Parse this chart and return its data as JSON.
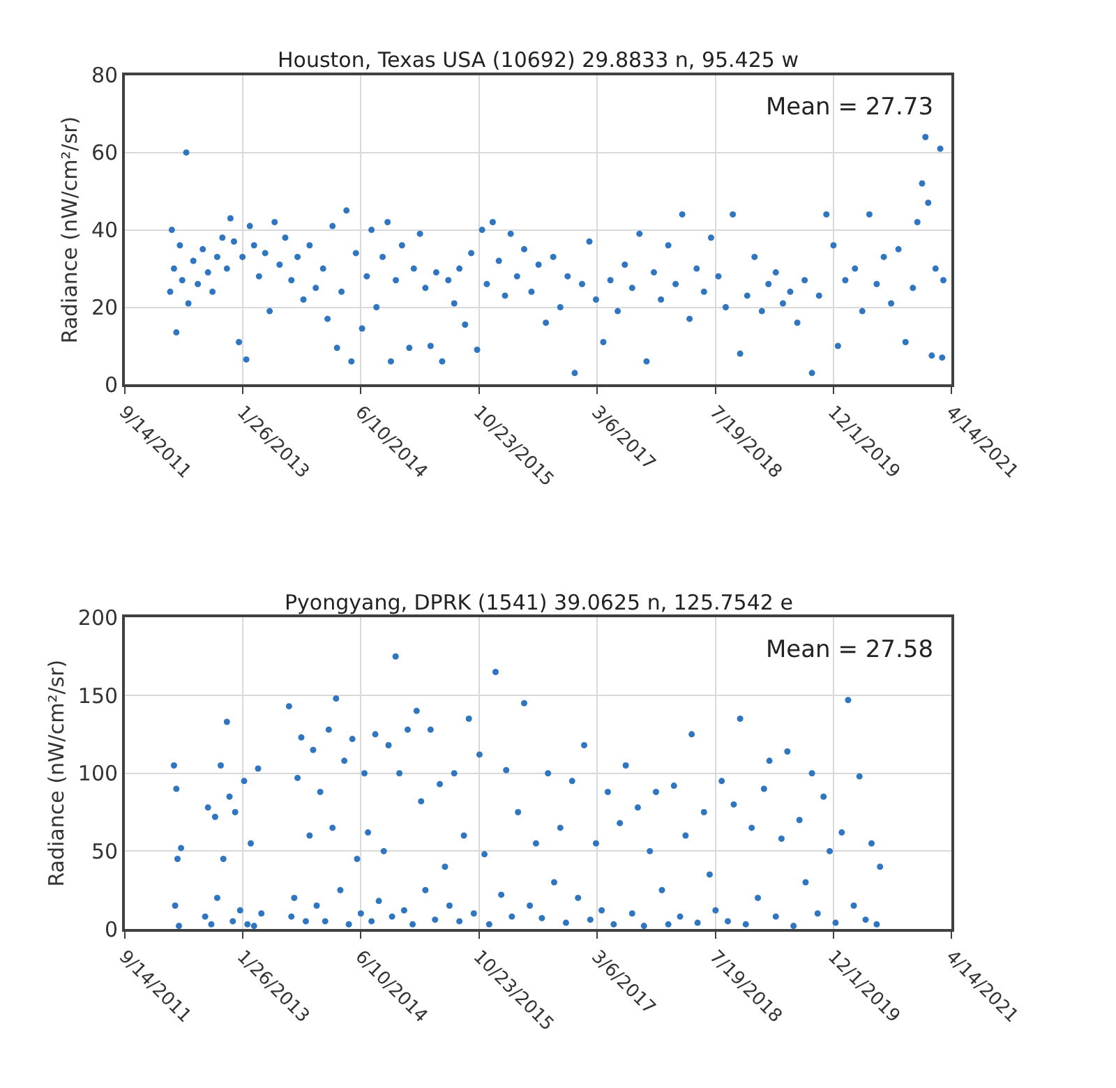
{
  "chart_data": [
    {
      "type": "scatter",
      "title": "Houston, Texas USA (10692) 29.8833 n, 95.425 w",
      "ylabel": "Radiance (nW/cm²/sr)",
      "color": "#2f75c0",
      "marker": "circle",
      "grid": true,
      "annotations": [
        "Mean = 27.73"
      ],
      "xlim": [
        "2011-09-14",
        "2021-04-14"
      ],
      "xticks": [
        {
          "value": "2011-09-14",
          "label": "9/14/2011"
        },
        {
          "value": "2013-01-26",
          "label": "1/26/2013"
        },
        {
          "value": "2014-06-10",
          "label": "6/10/2014"
        },
        {
          "value": "2015-10-23",
          "label": "10/23/2015"
        },
        {
          "value": "2017-03-06",
          "label": "3/6/2017"
        },
        {
          "value": "2018-07-19",
          "label": "7/19/2018"
        },
        {
          "value": "2019-12-01",
          "label": "12/1/2019"
        },
        {
          "value": "2021-04-14",
          "label": "4/14/2021"
        }
      ],
      "ylim": [
        0,
        80
      ],
      "yticks": [
        0,
        20,
        40,
        60,
        80
      ],
      "x": [
        "2012-03-25",
        "2012-04-01",
        "2012-04-10",
        "2012-04-20",
        "2012-05-05",
        "2012-05-15",
        "2012-06-01",
        "2012-06-10",
        "2012-07-01",
        "2012-07-20",
        "2012-08-10",
        "2012-09-01",
        "2012-09-20",
        "2012-10-10",
        "2012-11-01",
        "2012-11-20",
        "2012-12-05",
        "2012-12-20",
        "2013-01-10",
        "2013-01-25",
        "2013-02-10",
        "2013-02-25",
        "2013-03-15",
        "2013-04-05",
        "2013-05-01",
        "2013-05-20",
        "2013-06-10",
        "2013-07-01",
        "2013-07-25",
        "2013-08-20",
        "2013-09-15",
        "2013-10-10",
        "2013-11-05",
        "2013-12-01",
        "2014-01-01",
        "2014-01-20",
        "2014-02-10",
        "2014-03-01",
        "2014-03-20",
        "2014-04-10",
        "2014-05-01",
        "2014-05-20",
        "2014-06-15",
        "2014-07-05",
        "2014-07-25",
        "2014-08-15",
        "2014-09-10",
        "2014-10-01",
        "2014-10-15",
        "2014-11-05",
        "2014-12-01",
        "2015-01-01",
        "2015-01-20",
        "2015-02-15",
        "2015-03-10",
        "2015-04-01",
        "2015-04-25",
        "2015-05-20",
        "2015-06-15",
        "2015-07-10",
        "2015-08-01",
        "2015-08-25",
        "2015-09-20",
        "2015-10-15",
        "2015-11-05",
        "2015-11-25",
        "2015-12-20",
        "2016-01-15",
        "2016-02-10",
        "2016-03-05",
        "2016-04-01",
        "2016-05-01",
        "2016-06-01",
        "2016-07-01",
        "2016-08-01",
        "2016-09-01",
        "2016-10-01",
        "2016-11-01",
        "2016-12-01",
        "2017-01-01",
        "2017-02-01",
        "2017-03-01",
        "2017-04-01",
        "2017-05-01",
        "2017-06-01",
        "2017-07-01",
        "2017-08-01",
        "2017-09-01",
        "2017-10-01",
        "2017-11-01",
        "2017-12-01",
        "2018-01-01",
        "2018-02-01",
        "2018-03-01",
        "2018-04-01",
        "2018-05-01",
        "2018-06-01",
        "2018-07-01",
        "2018-08-01",
        "2018-09-01",
        "2018-10-01",
        "2018-11-01",
        "2018-12-01",
        "2019-01-01",
        "2019-02-01",
        "2019-03-01",
        "2019-04-01",
        "2019-05-01",
        "2019-06-01",
        "2019-07-01",
        "2019-08-01",
        "2019-09-01",
        "2019-10-01",
        "2019-11-01",
        "2019-12-01",
        "2019-12-20",
        "2020-01-20",
        "2020-03-01",
        "2020-04-01",
        "2020-05-01",
        "2020-06-01",
        "2020-07-01",
        "2020-08-01",
        "2020-09-01",
        "2020-10-01",
        "2020-11-01",
        "2020-11-20",
        "2020-12-10",
        "2020-12-24",
        "2021-01-05",
        "2021-01-20",
        "2021-02-05",
        "2021-02-25",
        "2021-03-05",
        "2021-03-10"
      ],
      "values": [
        24,
        40,
        30,
        13.5,
        36,
        27,
        60,
        21,
        32,
        26,
        35,
        29,
        24,
        33,
        38,
        30,
        43,
        37,
        11,
        33,
        6.5,
        41,
        36,
        28,
        34,
        19,
        42,
        31,
        38,
        27,
        33,
        22,
        36,
        25,
        30,
        17,
        41,
        9.5,
        24,
        45,
        6,
        34,
        14.5,
        28,
        40,
        20,
        33,
        42,
        6,
        27,
        36,
        9.5,
        30,
        39,
        25,
        10,
        29,
        6,
        27,
        21,
        30,
        15.5,
        34,
        9,
        40,
        26,
        42,
        32,
        23,
        39,
        28,
        35,
        24,
        31,
        16,
        33,
        20,
        28,
        3,
        26,
        37,
        22,
        11,
        27,
        19,
        31,
        25,
        39,
        6,
        29,
        22,
        36,
        26,
        44,
        17,
        30,
        24,
        38,
        28,
        20,
        44,
        8,
        23,
        33,
        19,
        26,
        29,
        21,
        24,
        16,
        27,
        3,
        23,
        44,
        36,
        10,
        27,
        30,
        19,
        44,
        26,
        33,
        21,
        35,
        11,
        25,
        42,
        52,
        64,
        47,
        7.5,
        30,
        61,
        7,
        27
      ]
    },
    {
      "type": "scatter",
      "title": "Pyongyang, DPRK (1541) 39.0625 n, 125.7542 e",
      "ylabel": "Radiance (nW/cm²/sr)",
      "color": "#2f75c0",
      "marker": "circle",
      "grid": true,
      "annotations": [
        "Mean = 27.58"
      ],
      "xlim": [
        "2011-09-14",
        "2021-04-14"
      ],
      "xticks": [
        {
          "value": "2011-09-14",
          "label": "9/14/2011"
        },
        {
          "value": "2013-01-26",
          "label": "1/26/2013"
        },
        {
          "value": "2014-06-10",
          "label": "6/10/2014"
        },
        {
          "value": "2015-10-23",
          "label": "10/23/2015"
        },
        {
          "value": "2017-03-06",
          "label": "3/6/2017"
        },
        {
          "value": "2018-07-19",
          "label": "7/19/2018"
        },
        {
          "value": "2019-12-01",
          "label": "12/1/2019"
        },
        {
          "value": "2021-04-14",
          "label": "4/14/2021"
        }
      ],
      "ylim": [
        0,
        200
      ],
      "yticks": [
        0,
        50,
        100,
        150,
        200
      ],
      "x": [
        "2012-04-10",
        "2012-04-15",
        "2012-04-20",
        "2012-04-25",
        "2012-05-01",
        "2012-05-10",
        "2012-08-20",
        "2012-09-01",
        "2012-09-15",
        "2012-10-01",
        "2012-10-10",
        "2012-10-25",
        "2012-11-05",
        "2012-11-20",
        "2012-12-01",
        "2012-12-15",
        "2012-12-25",
        "2013-01-15",
        "2013-02-01",
        "2013-02-15",
        "2013-03-01",
        "2013-03-15",
        "2013-04-01",
        "2013-04-15",
        "2013-08-10",
        "2013-08-20",
        "2013-09-01",
        "2013-09-15",
        "2013-10-01",
        "2013-10-20",
        "2013-11-05",
        "2013-11-20",
        "2013-12-05",
        "2013-12-20",
        "2014-01-10",
        "2014-01-25",
        "2014-02-10",
        "2014-02-25",
        "2014-03-15",
        "2014-04-01",
        "2014-04-20",
        "2014-05-05",
        "2014-05-25",
        "2014-06-10",
        "2014-06-25",
        "2014-07-10",
        "2014-07-25",
        "2014-08-10",
        "2014-08-25",
        "2014-09-15",
        "2014-10-05",
        "2014-10-20",
        "2014-11-04",
        "2014-11-20",
        "2014-12-10",
        "2014-12-25",
        "2015-01-15",
        "2015-02-01",
        "2015-02-20",
        "2015-03-10",
        "2015-04-01",
        "2015-04-20",
        "2015-05-10",
        "2015-06-01",
        "2015-06-20",
        "2015-07-10",
        "2015-08-01",
        "2015-08-20",
        "2015-09-10",
        "2015-10-01",
        "2015-10-25",
        "2015-11-15",
        "2015-12-05",
        "2016-01-01",
        "2016-01-25",
        "2016-02-15",
        "2016-03-10",
        "2016-04-05",
        "2016-05-01",
        "2016-05-25",
        "2016-06-20",
        "2016-07-15",
        "2016-08-10",
        "2016-09-05",
        "2016-10-01",
        "2016-10-25",
        "2016-11-20",
        "2016-12-15",
        "2017-01-10",
        "2017-02-05",
        "2017-03-01",
        "2017-03-25",
        "2017-04-20",
        "2017-05-15",
        "2017-06-10",
        "2017-07-05",
        "2017-08-01",
        "2017-08-25",
        "2017-09-20",
        "2017-10-15",
        "2017-11-10",
        "2017-12-05",
        "2018-01-01",
        "2018-01-25",
        "2018-02-20",
        "2018-03-15",
        "2018-04-10",
        "2018-05-05",
        "2018-06-01",
        "2018-06-25",
        "2018-07-20",
        "2018-08-15",
        "2018-09-10",
        "2018-10-05",
        "2018-11-01",
        "2018-11-25",
        "2018-12-20",
        "2019-01-15",
        "2019-02-10",
        "2019-03-05",
        "2019-04-01",
        "2019-04-25",
        "2019-05-20",
        "2019-06-15",
        "2019-07-10",
        "2019-08-05",
        "2019-09-01",
        "2019-09-25",
        "2019-10-20",
        "2019-11-15",
        "2019-12-10",
        "2020-01-05",
        "2020-02-01",
        "2020-02-25",
        "2020-03-20",
        "2020-04-15",
        "2020-05-10",
        "2020-06-01",
        "2020-06-15"
      ],
      "values": [
        105,
        15,
        90,
        45,
        2,
        52,
        8,
        78,
        3,
        72,
        20,
        105,
        45,
        133,
        85,
        5,
        75,
        12,
        95,
        3,
        55,
        2,
        103,
        10,
        143,
        8,
        20,
        97,
        123,
        5,
        60,
        115,
        15,
        88,
        5,
        128,
        65,
        148,
        25,
        108,
        3,
        122,
        45,
        10,
        100,
        62,
        5,
        125,
        18,
        50,
        118,
        8,
        175,
        100,
        12,
        128,
        3,
        140,
        82,
        25,
        128,
        6,
        93,
        40,
        15,
        100,
        5,
        60,
        135,
        10,
        112,
        48,
        3,
        165,
        22,
        102,
        8,
        75,
        145,
        15,
        55,
        7,
        100,
        30,
        65,
        4,
        95,
        20,
        118,
        6,
        55,
        12,
        88,
        3,
        68,
        105,
        10,
        78,
        2,
        50,
        88,
        25,
        3,
        92,
        8,
        60,
        125,
        4,
        75,
        35,
        12,
        95,
        5,
        80,
        135,
        3,
        65,
        20,
        90,
        108,
        8,
        58,
        114,
        2,
        70,
        30,
        100,
        10,
        85,
        50,
        4,
        62,
        147,
        15,
        98,
        6,
        55,
        3,
        40
      ]
    }
  ]
}
